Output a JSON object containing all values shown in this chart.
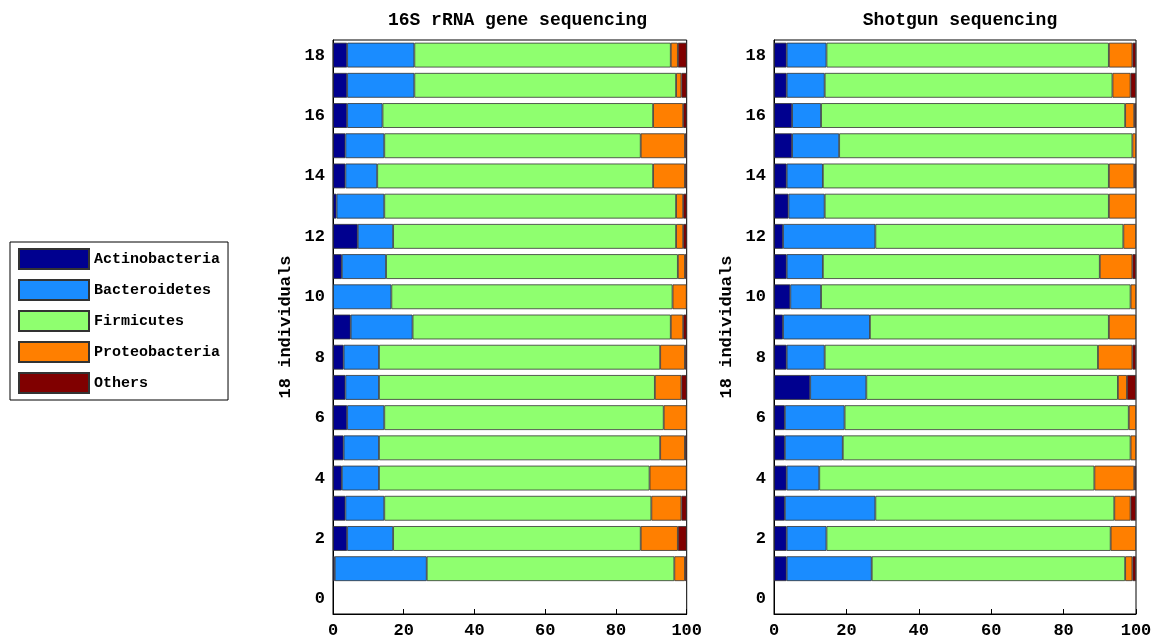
{
  "chart_data": [
    {
      "type": "bar",
      "orientation": "horizontal",
      "stacked": true,
      "title": "16S rRNA gene sequencing",
      "ylabel": "18 individuals",
      "legend": "left",
      "grid": false,
      "categories": [
        "18",
        null,
        "16",
        null,
        "14",
        null,
        "12",
        null,
        "10",
        null,
        "8",
        null,
        "6",
        null,
        "4",
        null,
        "2",
        null,
        "0"
      ],
      "xlim": [
        0,
        100
      ],
      "xticks": [
        0,
        20,
        40,
        60,
        80,
        100
      ],
      "series": [
        {
          "name": "Actinobacteria",
          "color": "#00008f",
          "values": [
            4,
            4,
            4,
            3.5,
            3.5,
            1,
            7,
            2.5,
            0,
            5,
            3,
            3.5,
            4,
            3,
            2.5,
            3.5,
            4,
            0.5,
            null
          ]
        },
        {
          "name": "Bacteroidetes",
          "color": "#1a8cff",
          "values": [
            19,
            19,
            10,
            11,
            9,
            13.5,
            10,
            12.5,
            16.5,
            17.5,
            10,
            9.5,
            10.5,
            10,
            10.5,
            11,
            13,
            26,
            null
          ]
        },
        {
          "name": "Firmicutes",
          "color": "#8fff6f",
          "values": [
            72.5,
            74,
            76.5,
            72.5,
            78,
            82.5,
            80,
            82.5,
            79.5,
            73,
            79.5,
            78,
            79,
            79.5,
            76.5,
            75.5,
            70,
            70,
            null
          ]
        },
        {
          "name": "Proteobacteria",
          "color": "#ff7f00",
          "values": [
            2,
            1.5,
            8.5,
            12.5,
            9,
            2,
            2,
            2,
            4,
            3.5,
            7,
            7.5,
            6.5,
            7,
            10.5,
            8.5,
            10.5,
            3,
            null
          ]
        },
        {
          "name": "Others",
          "color": "#800000",
          "values": [
            2.5,
            1.5,
            1,
            0.5,
            0.5,
            1,
            1,
            0.5,
            0,
            1,
            0.5,
            1.5,
            0,
            0.5,
            0,
            1.5,
            2.5,
            0.5,
            null
          ]
        }
      ]
    },
    {
      "type": "bar",
      "orientation": "horizontal",
      "stacked": true,
      "title": "Shotgun sequencing",
      "ylabel": "18 individuals",
      "grid": false,
      "categories": [
        "18",
        null,
        "16",
        null,
        "14",
        null,
        "12",
        null,
        "10",
        null,
        "8",
        null,
        "6",
        null,
        "4",
        null,
        "2",
        null,
        "0"
      ],
      "xlim": [
        0,
        100
      ],
      "xticks": [
        0,
        20,
        40,
        60,
        80,
        100
      ],
      "series": [
        {
          "color": "#00008f",
          "values": [
            3.5,
            3.5,
            5,
            5,
            3.5,
            4,
            2.5,
            3.5,
            4.5,
            2.5,
            3.5,
            10,
            3,
            3,
            3.5,
            3,
            3.5,
            3.5,
            null
          ]
        },
        {
          "color": "#1a8cff",
          "values": [
            11,
            10.5,
            8,
            13,
            10,
            10,
            25.5,
            10,
            8.5,
            24,
            10.5,
            15.5,
            16.5,
            16,
            9,
            25,
            11,
            23.5,
            null
          ]
        },
        {
          "color": "#8fff6f",
          "values": [
            78,
            79.5,
            84,
            81,
            79,
            78.5,
            68.5,
            76.5,
            85.5,
            66,
            75.5,
            69.5,
            78.5,
            79.5,
            76,
            66,
            78.5,
            70,
            null
          ]
        },
        {
          "color": "#ff7f00",
          "values": [
            6.5,
            5,
            2.5,
            1,
            7,
            7.5,
            3.5,
            9,
            1.5,
            7.5,
            9.5,
            2.5,
            2,
            1.5,
            11,
            4.5,
            7,
            2,
            null
          ]
        },
        {
          "color": "#800000",
          "values": [
            1,
            1.5,
            0.5,
            0,
            0.5,
            0,
            0,
            1,
            0,
            0,
            1,
            2.5,
            0,
            0,
            0.5,
            1.5,
            0,
            1,
            null
          ]
        }
      ]
    }
  ]
}
